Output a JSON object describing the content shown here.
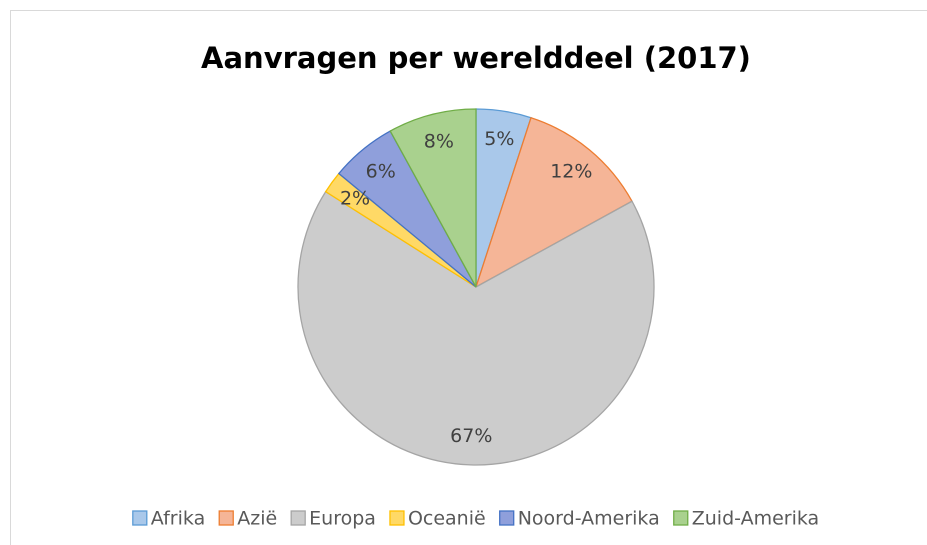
{
  "chart_data": {
    "type": "pie",
    "title": "Aanvragen per werelddeel (2017)",
    "categories": [
      "Afrika",
      "Azië",
      "Europa",
      "Oceanië",
      "Noord-Amerika",
      "Zuid-Amerika"
    ],
    "values": [
      5,
      12,
      67,
      2,
      6,
      8
    ],
    "value_labels": [
      "5%",
      "12%",
      "67%",
      "2%",
      "6%",
      "8%"
    ],
    "colors": [
      "#a9c8ea",
      "#f5b597",
      "#cccccc",
      "#ffd966",
      "#8f9fdb",
      "#a9d18e"
    ],
    "edge_colors": [
      "#5b9bd5",
      "#ed7d31",
      "#a5a5a5",
      "#ffc000",
      "#4472c4",
      "#70ad47"
    ],
    "legend": "bottom"
  }
}
